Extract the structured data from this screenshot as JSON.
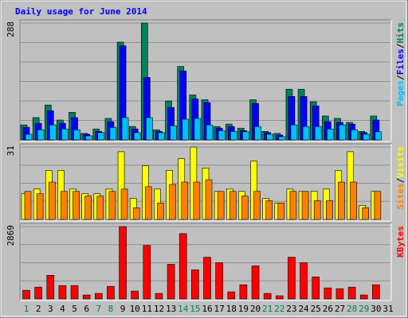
{
  "title": "Daily usage for June 2014",
  "legend_separator": "/",
  "chart_data": [
    {
      "type": "bar",
      "ylim": [
        0,
        288
      ],
      "yticks": [
        288
      ],
      "series": [
        {
          "name": "Hits",
          "color": "#00805c",
          "values": [
            37,
            55,
            86,
            49,
            68,
            16,
            27,
            53,
            241,
            33,
            288,
            25,
            96,
            181,
            111,
            99,
            33,
            39,
            29,
            99,
            21,
            16,
            125,
            125,
            94,
            59,
            53,
            43,
            21,
            59,
            null
          ]
        },
        {
          "name": "Files",
          "color": "#0000ff",
          "values": [
            31,
            41,
            72,
            41,
            55,
            14,
            21,
            45,
            232,
            27,
            154,
            21,
            80,
            170,
            101,
            92,
            29,
            33,
            23,
            90,
            18,
            12,
            107,
            107,
            84,
            45,
            43,
            39,
            18,
            49,
            null
          ]
        },
        {
          "name": "Pages",
          "color": "#00c0ff",
          "values": [
            14,
            25,
            37,
            27,
            25,
            10,
            18,
            31,
            55,
            18,
            55,
            18,
            35,
            51,
            53,
            37,
            23,
            21,
            20,
            33,
            14,
            8,
            37,
            33,
            33,
            27,
            37,
            25,
            14,
            20,
            null
          ]
        }
      ]
    },
    {
      "type": "bar",
      "ylim": [
        0,
        31
      ],
      "yticks": [
        31
      ],
      "series": [
        {
          "name": "Visits",
          "color": "#ffff00",
          "values": [
            11,
            13,
            21,
            21,
            13,
            11,
            11,
            13,
            29,
            9,
            23,
            13,
            21,
            26,
            31,
            22,
            12,
            13,
            12,
            25,
            9,
            7,
            13,
            12,
            12,
            13,
            21,
            29,
            6,
            12,
            null
          ]
        },
        {
          "name": "Sites",
          "color": "#ff8000",
          "values": [
            12,
            11,
            16,
            12,
            12,
            10,
            10,
            12,
            13,
            5,
            14,
            7,
            15,
            16,
            16,
            17,
            12,
            12,
            10,
            12,
            8,
            7,
            12,
            12,
            8,
            8,
            16,
            16,
            5,
            12,
            null
          ]
        }
      ]
    },
    {
      "type": "bar",
      "ylim": [
        0,
        2869
      ],
      "yticks": [
        2869
      ],
      "categories": [
        "1",
        "2",
        "3",
        "4",
        "5",
        "6",
        "7",
        "8",
        "9",
        "10",
        "11",
        "12",
        "13",
        "14",
        "15",
        "16",
        "17",
        "18",
        "19",
        "20",
        "21",
        "22",
        "23",
        "24",
        "25",
        "26",
        "27",
        "28",
        "29",
        "30",
        "31"
      ],
      "label_colors": [
        "#00805c",
        "#000000",
        "#000000",
        "#000000",
        "#000000",
        "#000000",
        "#00805c",
        "#00805c",
        "#000000",
        "#000000",
        "#000000",
        "#000000",
        "#000000",
        "#00805c",
        "#00805c",
        "#000000",
        "#000000",
        "#000000",
        "#000000",
        "#000000",
        "#00805c",
        "#00805c",
        "#000000",
        "#000000",
        "#000000",
        "#000000",
        "#000000",
        "#00805c",
        "#00805c",
        "#000000",
        "#000000"
      ],
      "series": [
        {
          "name": "KBytes",
          "color": "#ff0000",
          "values": [
            343,
            468,
            936,
            530,
            530,
            156,
            218,
            499,
            2869,
            312,
            2121,
            218,
            1372,
            2589,
            1154,
            1653,
            1435,
            281,
            561,
            1310,
            218,
            125,
            1653,
            1435,
            873,
            437,
            405,
            468,
            156,
            561,
            null
          ]
        }
      ]
    }
  ]
}
